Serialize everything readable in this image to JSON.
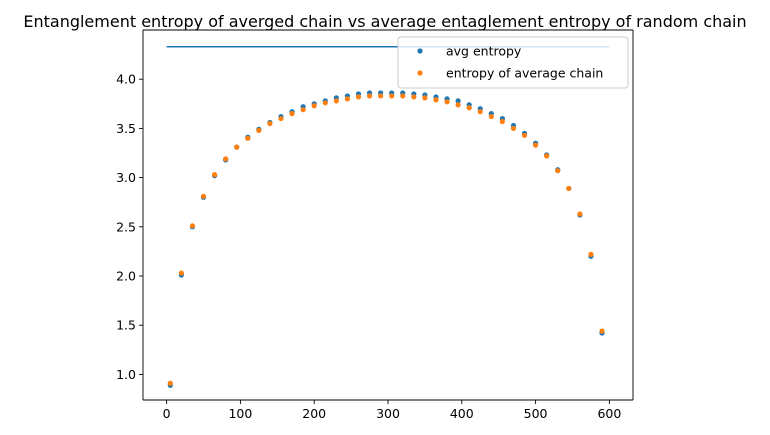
{
  "chart_data": {
    "type": "scatter",
    "title": "Entanglement entropy of averged chain vs average entaglement entropy of random chain",
    "xlabel": "",
    "ylabel": "",
    "xlim": [
      -32,
      632
    ],
    "ylim": [
      0.74,
      4.5
    ],
    "xticks": [
      0,
      100,
      200,
      300,
      400,
      500,
      600
    ],
    "yticks": [
      1.0,
      1.5,
      2.0,
      2.5,
      3.0,
      3.5,
      4.0
    ],
    "grid": false,
    "legend_position": "top-right",
    "hline": {
      "y": 4.33,
      "x": [
        0,
        600
      ],
      "color": "#1f77b4"
    },
    "x": [
      5,
      20,
      35,
      50,
      65,
      80,
      95,
      110,
      125,
      140,
      155,
      170,
      185,
      200,
      215,
      230,
      245,
      260,
      275,
      290,
      305,
      320,
      335,
      350,
      365,
      380,
      395,
      410,
      425,
      440,
      455,
      470,
      485,
      500,
      515,
      530,
      545,
      560,
      575,
      590
    ],
    "series": [
      {
        "name": "avg entropy",
        "color": "#1f77b4",
        "values": [
          0.89,
          2.01,
          2.5,
          2.8,
          3.02,
          3.18,
          3.31,
          3.41,
          3.49,
          3.56,
          3.62,
          3.67,
          3.72,
          3.75,
          3.78,
          3.81,
          3.83,
          3.85,
          3.86,
          3.86,
          3.86,
          3.86,
          3.85,
          3.84,
          3.82,
          3.8,
          3.78,
          3.74,
          3.7,
          3.65,
          3.6,
          3.53,
          3.45,
          3.35,
          3.23,
          3.08,
          2.89,
          2.62,
          2.2,
          1.42
        ]
      },
      {
        "name": "entropy of average chain",
        "color": "#ff7f0e",
        "values": [
          0.91,
          2.03,
          2.51,
          2.81,
          3.03,
          3.19,
          3.31,
          3.4,
          3.48,
          3.55,
          3.6,
          3.65,
          3.69,
          3.73,
          3.76,
          3.78,
          3.8,
          3.82,
          3.83,
          3.83,
          3.83,
          3.83,
          3.82,
          3.81,
          3.79,
          3.77,
          3.74,
          3.71,
          3.67,
          3.62,
          3.57,
          3.5,
          3.43,
          3.33,
          3.22,
          3.07,
          2.89,
          2.63,
          2.22,
          1.44
        ]
      }
    ]
  }
}
